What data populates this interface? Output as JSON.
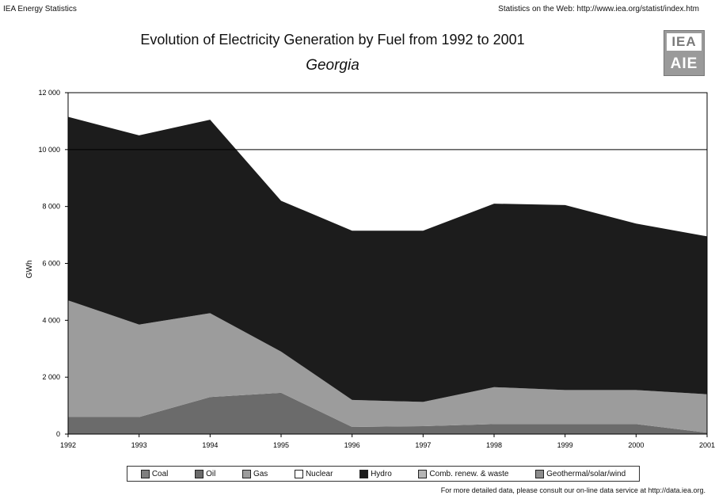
{
  "header": {
    "left": "IEA Energy Statistics",
    "right": "Statistics on the Web: http://www.iea.org/statist/index.htm"
  },
  "logo": {
    "top_text": "IEA",
    "bottom_text": "AIE"
  },
  "footer": "For more detailed data, please consult our on-line data service at http://data.iea.org.",
  "chart_data": {
    "type": "area",
    "stacked": true,
    "title": "Evolution of Electricity Generation by Fuel from 1992 to 2001",
    "subtitle": "Georgia",
    "ylabel": "GWh",
    "xlabel": "",
    "x": [
      1992,
      1993,
      1994,
      1995,
      1996,
      1997,
      1998,
      1999,
      2000,
      2001
    ],
    "x_tick_labels": [
      "1992",
      "1993",
      "1994",
      "1995",
      "1996",
      "1997",
      "1998",
      "1999",
      "2000",
      "2001"
    ],
    "ylim": [
      0,
      12000
    ],
    "y_ticks": [
      0,
      2000,
      4000,
      6000,
      8000,
      10000,
      12000
    ],
    "y_tick_labels": [
      "0",
      "2 000",
      "4 000",
      "6 000",
      "8 000",
      "10 000",
      "12 000"
    ],
    "reference_line": 10000,
    "grid": false,
    "legend_position": "bottom",
    "series": [
      {
        "name": "Coal",
        "color": "#7f7f7f",
        "values": [
          0,
          0,
          0,
          0,
          0,
          0,
          0,
          0,
          0,
          0
        ]
      },
      {
        "name": "Oil",
        "color": "#6b6b6b",
        "values": [
          600,
          600,
          1300,
          1450,
          250,
          280,
          350,
          350,
          350,
          50
        ]
      },
      {
        "name": "Gas",
        "color": "#9c9c9c",
        "values": [
          4100,
          3250,
          2950,
          1450,
          950,
          850,
          1300,
          1200,
          1200,
          1350
        ]
      },
      {
        "name": "Nuclear",
        "color": "#ffffff",
        "values": [
          0,
          0,
          0,
          0,
          0,
          0,
          0,
          0,
          0,
          0
        ]
      },
      {
        "name": "Hydro",
        "color": "#1c1c1c",
        "values": [
          6450,
          6650,
          6800,
          5300,
          5950,
          6020,
          6450,
          6500,
          5850,
          5550
        ]
      },
      {
        "name": "Comb. renew. & waste",
        "color": "#b5b5b5",
        "values": [
          0,
          0,
          0,
          0,
          0,
          0,
          0,
          0,
          0,
          0
        ]
      },
      {
        "name": "Geothermal/solar/wind",
        "color": "#8c8c8c",
        "values": [
          0,
          0,
          0,
          0,
          0,
          0,
          0,
          0,
          0,
          0
        ]
      }
    ]
  }
}
